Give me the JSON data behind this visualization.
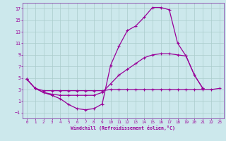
{
  "xlabel": "Windchill (Refroidissement éolien,°C)",
  "bg_color": "#cce8ec",
  "grid_color": "#aacccc",
  "line_color": "#990099",
  "spine_color": "#8844aa",
  "xlim": [
    -0.5,
    23.5
  ],
  "ylim": [
    -2,
    18
  ],
  "xticks": [
    0,
    1,
    2,
    3,
    4,
    5,
    6,
    7,
    8,
    9,
    10,
    11,
    12,
    13,
    14,
    15,
    16,
    17,
    18,
    19,
    20,
    21,
    22,
    23
  ],
  "yticks": [
    -1,
    1,
    3,
    5,
    7,
    9,
    11,
    13,
    15,
    17
  ],
  "line1_x": [
    0,
    1,
    2,
    3,
    4,
    5,
    6,
    7,
    8,
    9,
    10,
    11,
    12,
    13,
    14,
    15,
    16,
    17,
    18,
    19,
    20,
    21
  ],
  "line1_y": [
    4.8,
    3.2,
    2.5,
    2.0,
    1.4,
    0.4,
    -0.3,
    -0.5,
    -0.3,
    0.5,
    7.2,
    10.5,
    13.2,
    14.0,
    15.5,
    17.2,
    17.2,
    16.8,
    11.0,
    8.8,
    5.5,
    3.2
  ],
  "line2_x": [
    0,
    1,
    2,
    3,
    4,
    5,
    6,
    7,
    8,
    9,
    10,
    11,
    12,
    13,
    14,
    15,
    16,
    17,
    18,
    19,
    20,
    21,
    22,
    23
  ],
  "line2_y": [
    4.8,
    3.2,
    2.8,
    2.8,
    2.8,
    2.8,
    2.8,
    2.8,
    2.8,
    2.8,
    3.0,
    3.0,
    3.0,
    3.0,
    3.0,
    3.0,
    3.0,
    3.0,
    3.0,
    3.0,
    3.0,
    3.0,
    3.0,
    3.2
  ],
  "line3_x": [
    0,
    1,
    2,
    3,
    4,
    5,
    6,
    7,
    8,
    9,
    10,
    11,
    12,
    13,
    14,
    15,
    16,
    17,
    18,
    19,
    20,
    21
  ],
  "line3_y": [
    4.8,
    3.2,
    2.5,
    2.2,
    2.0,
    2.0,
    2.0,
    2.0,
    2.0,
    2.5,
    4.0,
    5.5,
    6.5,
    7.5,
    8.5,
    9.0,
    9.2,
    9.2,
    9.0,
    8.8,
    5.5,
    3.2
  ]
}
